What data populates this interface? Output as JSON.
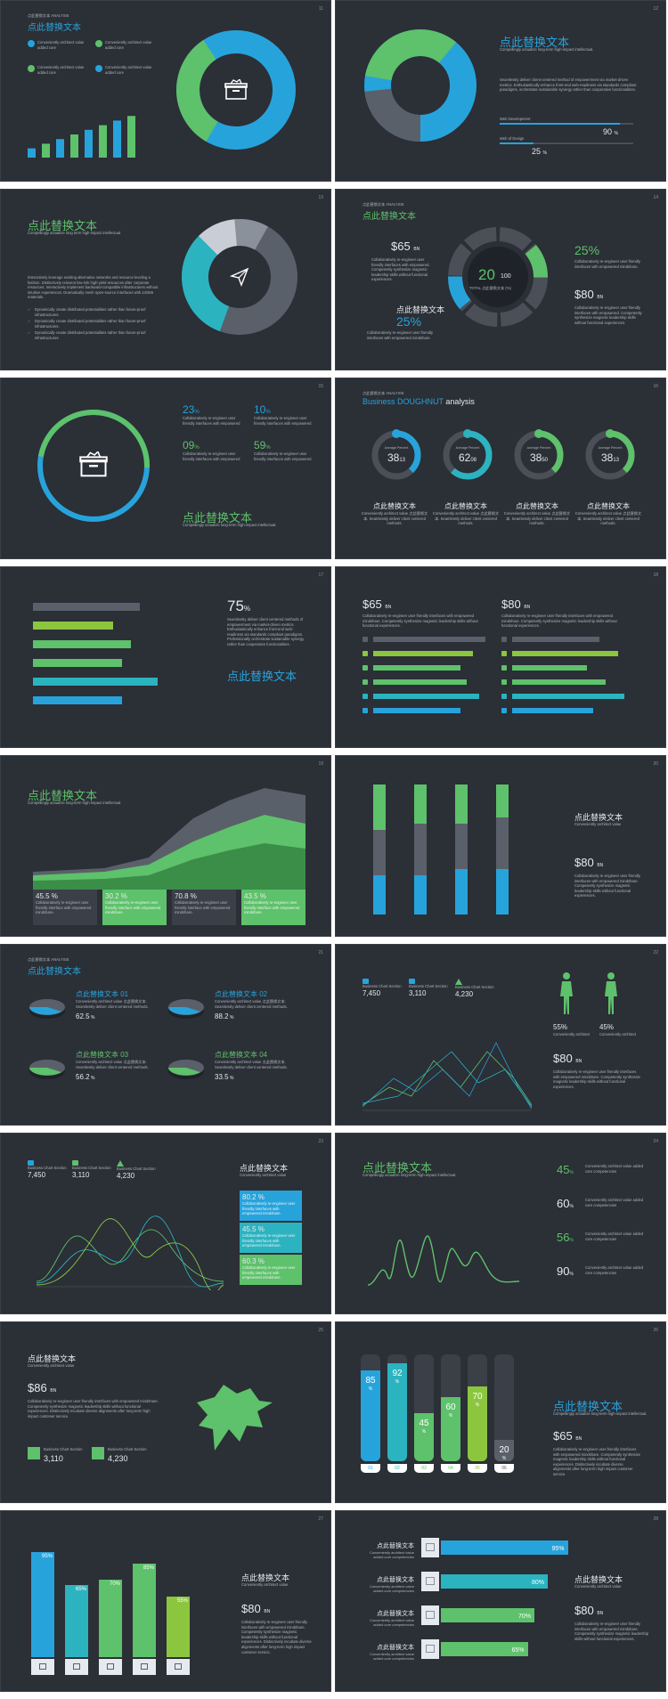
{
  "colors": {
    "bg": "#2b2f36",
    "blue": "#27a3dc",
    "green": "#5ec16b",
    "lime": "#8cc63f",
    "teal": "#2bb3c0",
    "gray": "#5a606a",
    "dark": "#1f2329"
  },
  "slides": {
    "s11": {
      "num": "11",
      "kicker": "点此替换文本 ANALYSIS",
      "title": "点此替换文本",
      "legend": [
        "Conveniently architect value added core",
        "Conveniently architect value added core",
        "Conveniently architect value added core",
        "Conveniently architect value added core"
      ],
      "icon": "archive-box-icon",
      "chart_data": {
        "type": "bar",
        "values": [
          2,
          3,
          4,
          5,
          6,
          7,
          8,
          9
        ]
      }
    },
    "s12": {
      "num": "12",
      "title": "点此替换文本",
      "subtitle": "Compellingly actualize long-term high-impact intellectual.",
      "body": "Seamlessly deliver client-centered method of empowerment via market-driven metrics. Enthusiastically enhance front-end web-readiness via standards compliant paradigms, orchestrate sustainable synergy rather than cooperative functionalities.",
      "bars": [
        {
          "label": "Web Development",
          "value": "90",
          "unit": "%"
        },
        {
          "label": "Web of Design",
          "value": "25",
          "unit": "%"
        }
      ]
    },
    "s13": {
      "num": "13",
      "title": "点此替换文本",
      "subtitle": "Compellingly actualize long term high-impact intellectual.",
      "body": "Interactively leverage existing alternative networks and resource leveling a fashion. Distinctively reinvent low-risk high-yield resources after corporate resources. Interactively implement backward-compatible infrastructures without intuitive experiences. Dramatically mesh open-source interfaces with 24/365 materials.",
      "checks": [
        "Dynamically create distributed potentialities rather than future-proof infrastructures.",
        "Dynamically create distributed potentialities rather than future-proof infrastructures.",
        "Dynamically create distributed potentialities rather than future-proof infrastructures."
      ],
      "icon": "paper-plane-icon"
    },
    "s14": {
      "num": "14",
      "kicker": "点此替换文本 ANALYSIS",
      "title": "点此替换文本",
      "left_value": "$65",
      "left_unit": "BN",
      "left_text": "Collaboratively re-engineer user friendly interfaces with empowered. Competently synthesize magnetic leadership skills without functional experiences.",
      "left_sub": "点此替换文本",
      "left_pct": "25%",
      "left_pct_text": "Collaboratively re-engineer user friendly interfaces with empowered mindshare.",
      "center_value": "20",
      "center_total": "100",
      "center_label": "TOTAL 点此替换文本 (%)",
      "right_pct": "25%",
      "right_pct_text": "Collaboratively re-engineer user friendly interfaces with empowered mindshare.",
      "right_value": "$80",
      "right_unit": "BN",
      "right_text": "Collaboratively re-engineer user friendly interfaces with empowered. Competently synthesize magnetic leadership skills without functional experiences."
    },
    "s15": {
      "num": "15",
      "icon": "archive-box-icon",
      "stats": [
        {
          "value": "23",
          "unit": "%",
          "text": "Collaboratively re-engineer user friendly interfaces with empowered"
        },
        {
          "value": "10",
          "unit": "%",
          "text": "Collaboratively re-engineer user friendly interfaces with empowered"
        },
        {
          "value": "09",
          "unit": "%",
          "text": "Collaboratively re-engineer user friendly interfaces with empowered"
        },
        {
          "value": "59",
          "unit": "%",
          "text": "Collaboratively re-engineer user friendly interfaces with empowered"
        }
      ],
      "title": "点此替换文本",
      "subtitle": "Compellingly actualize long-term high-impact intellectual."
    },
    "s16": {
      "num": "16",
      "kicker": "点此替换文本 ANALYSIS",
      "title_a": "Business DOUGHNUT",
      "title_b": "analysis",
      "rings": [
        {
          "caption": "Average Percent",
          "big": "38",
          "small": "13",
          "value": 0.38,
          "color": "#27a3dc"
        },
        {
          "caption": "Average Percent",
          "big": "62",
          "small": "08",
          "value": 0.62,
          "color": "#2bb3c0"
        },
        {
          "caption": "Average Percent",
          "big": "38",
          "small": "50",
          "value": 0.38,
          "color": "#5ec16b"
        },
        {
          "caption": "Average Percent",
          "big": "38",
          "small": "13",
          "value": 0.38,
          "color": "#5ec16b"
        }
      ],
      "items": [
        {
          "title": "点此替换文本",
          "text": "Conveniently architect value 点此替换文本. Seamlessly deliver client centered methods."
        },
        {
          "title": "点此替换文本",
          "text": "Conveniently architect value 点此替换文本. Seamlessly deliver client centered methods."
        },
        {
          "title": "点此替换文本",
          "text": "Conveniently architect value 点此替换文本. Seamlessly deliver client centered methods."
        },
        {
          "title": "点此替换文本",
          "text": "Conveniently architect value 点此替换文本. Seamlessly deliver client centered methods."
        }
      ]
    },
    "s17": {
      "num": "17",
      "value": "75",
      "unit": "%",
      "text": "Seamlessly deliver client centered methods of empowerment via market-driven metrics. Enthusiastically enhance front-end web-readiness via standards compliant paradigms. Professionally orchestrate sustainable synergy rather than cooperative functionalities.",
      "title": "点此替换文本",
      "chart_data": {
        "type": "bar",
        "values": [
          0.6,
          0.45,
          0.55,
          0.5,
          0.7,
          0.5
        ]
      }
    },
    "s18": {
      "num": "18",
      "left_value": "$65",
      "left_unit": "BN",
      "left_text": "Collaboratively re-engineer user friendly interfaces with empowered mindshare. Competently synthesize magnetic leadership skills without functional experiences.",
      "right_value": "$80",
      "right_unit": "BN",
      "right_text": "Collaboratively re-engineer user friendly interfaces with empowered mindshare. Competently synthesize magnetic leadership skills without functional experiences."
    },
    "s19": {
      "num": "19",
      "title": "点此替换文本",
      "subtitle": "Compellingly actualize long-term high-impact intellectual.",
      "stats": [
        {
          "value": "45.5 %",
          "text": "Collaboratively re-engineer user friendly interface with empowered mindshare."
        },
        {
          "value": "30.2 %",
          "text": "Collaboratively re-engineer user friendly interface with empowered mindshare."
        },
        {
          "value": "70.8 %",
          "text": "Collaboratively re-engineer user friendly interface with empowered mindshare."
        },
        {
          "value": "43.5 %",
          "text": "Collaboratively re-engineer user friendly interface with empowered mindshare."
        }
      ]
    },
    "s20": {
      "num": "20",
      "title": "点此替换文本",
      "subtitle": "Conveniently architect value",
      "value": "$80",
      "unit": "BN",
      "text": "Collaboratively re-engineer user friendly interfaces with empowered mindshare. Competently synthesize magnetic leadership skills without functional experiences."
    },
    "s21": {
      "num": "21",
      "kicker": "点此替换文本 ANALYSIS",
      "title": "点此替换文本",
      "items": [
        {
          "title": "点此替换文本 01",
          "text": "Conveniently architect value 点此替换文本. Seamlessly deliver client centered methods.",
          "value": "62.5",
          "unit": "%"
        },
        {
          "title": "点此替换文本 02",
          "text": "Conveniently architect value 点此替换文本. Seamlessly deliver client centered methods.",
          "value": "88.2",
          "unit": "%"
        },
        {
          "title": "点此替换文本 03",
          "text": "Conveniently architect value 点此替换文本. Seamlessly deliver client centered methods.",
          "value": "56.2",
          "unit": "%"
        },
        {
          "title": "点此替换文本 04",
          "text": "Conveniently architect value 点此替换文本. Seamlessly deliver client centered methods.",
          "value": "33.5",
          "unit": "%"
        }
      ]
    },
    "s22": {
      "num": "22",
      "stats": [
        {
          "label": "Business Chart Section",
          "value": "7,450"
        },
        {
          "label": "Business Chart Section",
          "value": "3,110"
        },
        {
          "label": "Business Chart Section",
          "value": "4,230"
        }
      ],
      "figures": [
        {
          "value": "55%",
          "text": "Conveniently architect"
        },
        {
          "value": "45%",
          "text": "Conveniently architect"
        }
      ],
      "value": "$80",
      "unit": "BN",
      "text": "Collaboratively re-engineer user friendly interfaces with empowered mindshare. Competently synthesize magnetic leadership skills without functional experiences."
    },
    "s23": {
      "num": "23",
      "stats": [
        {
          "label": "Business Chart Section",
          "value": "7,450"
        },
        {
          "label": "Business Chart Section",
          "value": "3,110"
        },
        {
          "label": "Business Chart Section",
          "value": "4,230"
        }
      ],
      "title": "点此替换文本",
      "subtitle": "Conveniently architect value",
      "boxes": [
        {
          "value": "80.2 %",
          "text": "Collaboratively re-engineer user friendly interfaces with empowered mindshare."
        },
        {
          "value": "45.5 %",
          "text": "Collaboratively re-engineer user friendly interfaces with empowered mindshare."
        },
        {
          "value": "60.3 %",
          "text": "Collaboratively re-engineer user friendly interfaces with empowered mindshare."
        }
      ]
    },
    "s24": {
      "num": "24",
      "title": "点此替换文本",
      "subtitle": "Compellingly actualize long-term high-impact intellectual.",
      "stats": [
        {
          "value": "45",
          "unit": "%",
          "text": "Conveniently architect value added core competencies"
        },
        {
          "value": "60",
          "unit": "%",
          "text": "Conveniently architect value added core competencies"
        },
        {
          "value": "56",
          "unit": "%",
          "text": "Conveniently architect value added core competencies"
        },
        {
          "value": "90",
          "unit": "%",
          "text": "Conveniently architect value added core competencies"
        }
      ]
    },
    "s25": {
      "num": "25",
      "title": "点此替换文本",
      "subtitle": "Conveniently architect value",
      "value": "$86",
      "unit": "BN",
      "text": "Collaboratively re-engineer user friendly interfaces with empowered mindshare. Competently synthesize magnetic leadership skills without functional experiences. Distinctively incubate diverse alignments after long-term high impact customer service.",
      "stats": [
        {
          "label": "Business Chart Section",
          "value": "3,110"
        },
        {
          "label": "Business Chart Section",
          "value": "4,230"
        }
      ]
    },
    "s26": {
      "num": "26",
      "chart_data": {
        "type": "bar",
        "categories": [
          "01",
          "02",
          "03",
          "04",
          "05",
          "06"
        ],
        "values": [
          85,
          92,
          45,
          60,
          70,
          20
        ]
      },
      "title": "点此替换文本",
      "subtitle": "Compellingly actualize long-term high-impact intellectual.",
      "value": "$65",
      "unit": "BN",
      "text": "Collaboratively re-engineer user friendly interfaces with empowered mindshare. Competently synthesize magnetic leadership skills without functional experiences. Distinctively incubate diverse alignments after long-term high impact customer service."
    },
    "s27": {
      "num": "27",
      "chart_data": {
        "type": "bar",
        "values": [
          95,
          65,
          70,
          85,
          55
        ]
      },
      "title": "点此替换文本",
      "subtitle": "Conveniently architect value",
      "value": "$80",
      "unit": "BN",
      "text": "Collaboratively re-engineer user friendly interfaces with empowered mindshare. Competently synthesize magnetic leadership skills without functional experiences. Distinctively incubate diverse alignments after long-term high impact customer service."
    },
    "s28": {
      "num": "28",
      "items": [
        {
          "title": "点此替换文本",
          "text": "Conveniently architect value added core competencies"
        },
        {
          "title": "点此替换文本",
          "text": "Conveniently architect value added core competencies"
        },
        {
          "title": "点此替换文本",
          "text": "Conveniently architect value added core competencies"
        },
        {
          "title": "点此替换文本",
          "text": "Conveniently architect value added core competencies"
        }
      ],
      "chart_data": {
        "type": "bar",
        "values": [
          95,
          80,
          70,
          65
        ]
      },
      "title": "点此替换文本",
      "subtitle": "Conveniently architect value",
      "value": "$80",
      "unit": "BN",
      "text": "Collaboratively re-engineer user friendly interfaces with empowered mindshare. Competently synthesize magnetic leadership skills without functional experiences."
    }
  }
}
